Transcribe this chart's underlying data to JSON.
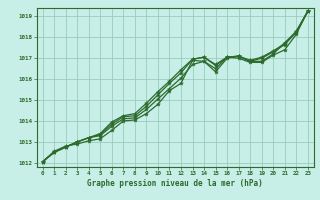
{
  "title": "",
  "xlabel": "Graphe pression niveau de la mer (hPa)",
  "ylabel": "",
  "bg_color": "#c8eee8",
  "grid_color": "#99ccbb",
  "line_color": "#2d6a2d",
  "marker_color": "#2d6a2d",
  "xlim": [
    -0.5,
    23.5
  ],
  "ylim": [
    1011.8,
    1019.4
  ],
  "yticks": [
    1012,
    1013,
    1014,
    1015,
    1016,
    1017,
    1018,
    1019
  ],
  "xticks": [
    0,
    1,
    2,
    3,
    4,
    5,
    6,
    7,
    8,
    9,
    10,
    11,
    12,
    13,
    14,
    15,
    16,
    17,
    18,
    19,
    20,
    21,
    22,
    23
  ],
  "series": [
    [
      1012.05,
      1012.55,
      1012.8,
      1012.9,
      1013.05,
      1013.15,
      1013.55,
      1014.0,
      1014.05,
      1014.35,
      1014.8,
      1015.45,
      1015.8,
      1016.9,
      1016.85,
      1016.35,
      1017.0,
      1017.1,
      1016.85,
      1016.85,
      1017.2,
      1017.75,
      1018.25,
      1019.25
    ],
    [
      1012.05,
      1012.5,
      1012.75,
      1013.0,
      1013.2,
      1013.3,
      1013.75,
      1014.1,
      1014.15,
      1014.55,
      1015.05,
      1015.55,
      1016.05,
      1016.7,
      1016.85,
      1016.5,
      1017.05,
      1017.0,
      1016.8,
      1016.8,
      1017.15,
      1017.4,
      1018.15,
      1019.25
    ],
    [
      1012.05,
      1012.5,
      1012.75,
      1013.0,
      1013.2,
      1013.35,
      1013.85,
      1014.2,
      1014.25,
      1014.7,
      1015.25,
      1015.8,
      1016.3,
      1016.95,
      1017.05,
      1016.65,
      1017.05,
      1017.1,
      1016.85,
      1017.0,
      1017.3,
      1017.65,
      1018.25,
      1019.25
    ],
    [
      1012.05,
      1012.5,
      1012.75,
      1013.0,
      1013.2,
      1013.4,
      1013.95,
      1014.25,
      1014.35,
      1014.85,
      1015.4,
      1015.9,
      1016.45,
      1016.95,
      1017.05,
      1016.7,
      1017.05,
      1017.1,
      1016.9,
      1017.05,
      1017.35,
      1017.7,
      1018.3,
      1019.25
    ]
  ]
}
